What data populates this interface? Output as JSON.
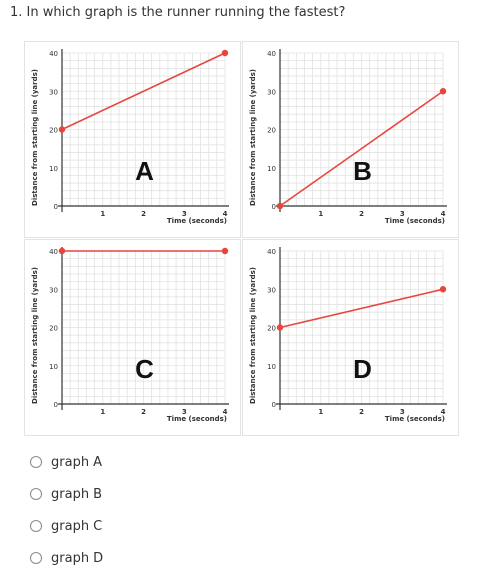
{
  "question": {
    "text": "1. In which graph is the runner running the fastest?"
  },
  "chart_data": [
    {
      "type": "line",
      "letter": "A",
      "xlabel": "Time (seconds)",
      "ylabel": "Distance from starting line (yards)",
      "xlim": [
        0,
        4
      ],
      "ylim": [
        0,
        40
      ],
      "x_ticks": [
        1,
        2,
        3,
        4
      ],
      "y_ticks": [
        0,
        10,
        20,
        30,
        40
      ],
      "series": [
        {
          "x": [
            0,
            4
          ],
          "y": [
            20,
            40
          ]
        }
      ]
    },
    {
      "type": "line",
      "letter": "B",
      "xlabel": "Time (seconds)",
      "ylabel": "Distance from starting line (yards)",
      "xlim": [
        0,
        4
      ],
      "ylim": [
        0,
        40
      ],
      "x_ticks": [
        1,
        2,
        3,
        4
      ],
      "y_ticks": [
        0,
        10,
        20,
        30,
        40
      ],
      "series": [
        {
          "x": [
            0,
            4
          ],
          "y": [
            0,
            30
          ]
        }
      ]
    },
    {
      "type": "line",
      "letter": "C",
      "xlabel": "Time (seconds)",
      "ylabel": "Distance from starting line (yards)",
      "xlim": [
        0,
        4
      ],
      "ylim": [
        0,
        40
      ],
      "x_ticks": [
        1,
        2,
        3,
        4
      ],
      "y_ticks": [
        0,
        10,
        20,
        30,
        40
      ],
      "series": [
        {
          "x": [
            0,
            4
          ],
          "y": [
            40,
            40
          ]
        }
      ]
    },
    {
      "type": "line",
      "letter": "D",
      "xlabel": "Time (seconds)",
      "ylabel": "Distance from starting line (yards)",
      "xlim": [
        0,
        4
      ],
      "ylim": [
        0,
        40
      ],
      "x_ticks": [
        1,
        2,
        3,
        4
      ],
      "y_ticks": [
        0,
        10,
        20,
        30,
        40
      ],
      "series": [
        {
          "x": [
            0,
            4
          ],
          "y": [
            20,
            30
          ]
        }
      ]
    }
  ],
  "colors": {
    "line": "#e8453c",
    "axis": "#333333",
    "grid": "#e2e2e2"
  },
  "options": [
    {
      "label": "graph A"
    },
    {
      "label": "graph B"
    },
    {
      "label": "graph C"
    },
    {
      "label": "graph D"
    }
  ]
}
